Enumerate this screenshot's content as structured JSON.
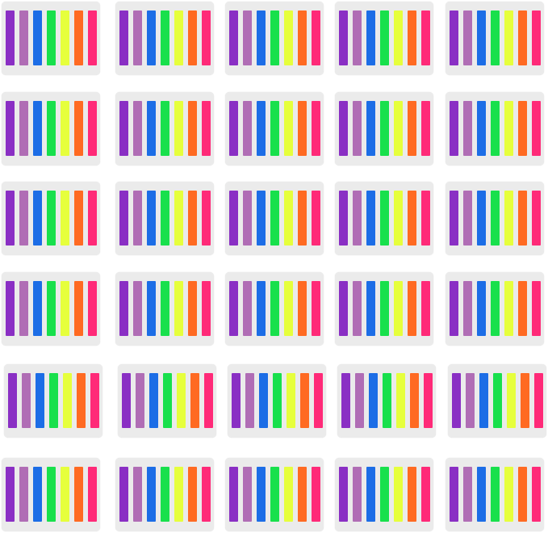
{
  "product": {
    "card_rows": 6,
    "card_columns": 5,
    "card_color": "#ebebeb",
    "tab_colors": [
      {
        "name": "purple",
        "hex": "#8a2fc4"
      },
      {
        "name": "lavender",
        "hex": "#b06db5"
      },
      {
        "name": "blue",
        "hex": "#1c6de6"
      },
      {
        "name": "green",
        "hex": "#18e04c"
      },
      {
        "name": "yellow",
        "hex": "#e6ff3c"
      },
      {
        "name": "orange",
        "hex": "#ff6a22"
      },
      {
        "name": "pink",
        "hex": "#ff2a78"
      }
    ]
  }
}
